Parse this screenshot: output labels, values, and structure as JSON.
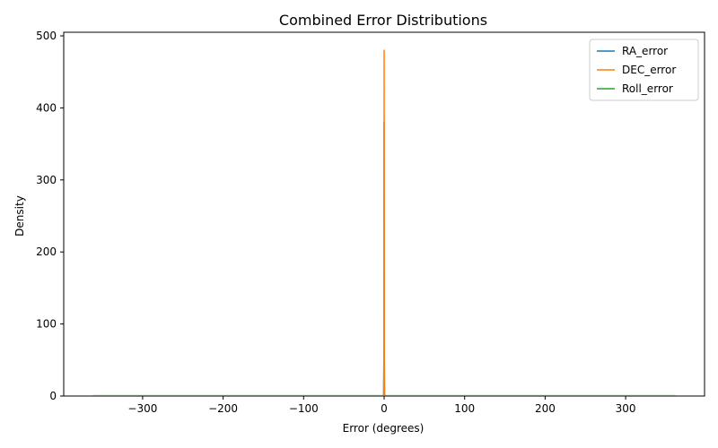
{
  "chart_data": {
    "type": "line",
    "title": "Combined Error Distributions",
    "xlabel": "Error (degrees)",
    "ylabel": "Density",
    "xlim": [
      -398,
      398
    ],
    "ylim": [
      0,
      505
    ],
    "xticks": [
      -300,
      -200,
      -100,
      0,
      100,
      200,
      300
    ],
    "yticks": [
      0,
      100,
      200,
      300,
      400,
      500
    ],
    "xtick_labels": [
      "−300",
      "−200",
      "−100",
      "0",
      "100",
      "200",
      "300"
    ],
    "ytick_labels": [
      "0",
      "100",
      "200",
      "300",
      "400",
      "500"
    ],
    "grid": false,
    "legend_position": "top-right",
    "series": [
      {
        "name": "RA_error",
        "color": "#1f77b4",
        "points": [
          [
            -1.2,
            0
          ],
          [
            -0.6,
            0
          ],
          [
            -0.25,
            60
          ],
          [
            -0.1,
            380
          ],
          [
            0.05,
            60
          ],
          [
            0.4,
            0
          ],
          [
            1.2,
            0
          ]
        ]
      },
      {
        "name": "DEC_error",
        "color": "#ff7f0e",
        "points": [
          [
            -1.2,
            0
          ],
          [
            -0.5,
            0
          ],
          [
            -0.15,
            60
          ],
          [
            0.05,
            480
          ],
          [
            0.25,
            60
          ],
          [
            0.6,
            0
          ],
          [
            1.2,
            0
          ]
        ]
      },
      {
        "name": "Roll_error",
        "color": "#2ca02c",
        "points": [
          [
            -362,
            0.4
          ],
          [
            -300,
            0.4
          ],
          [
            -200,
            0.4
          ],
          [
            -100,
            0.4
          ],
          [
            0,
            0.4
          ],
          [
            100,
            0.4
          ],
          [
            200,
            0.4
          ],
          [
            300,
            0.4
          ],
          [
            362,
            0.4
          ]
        ]
      }
    ]
  }
}
